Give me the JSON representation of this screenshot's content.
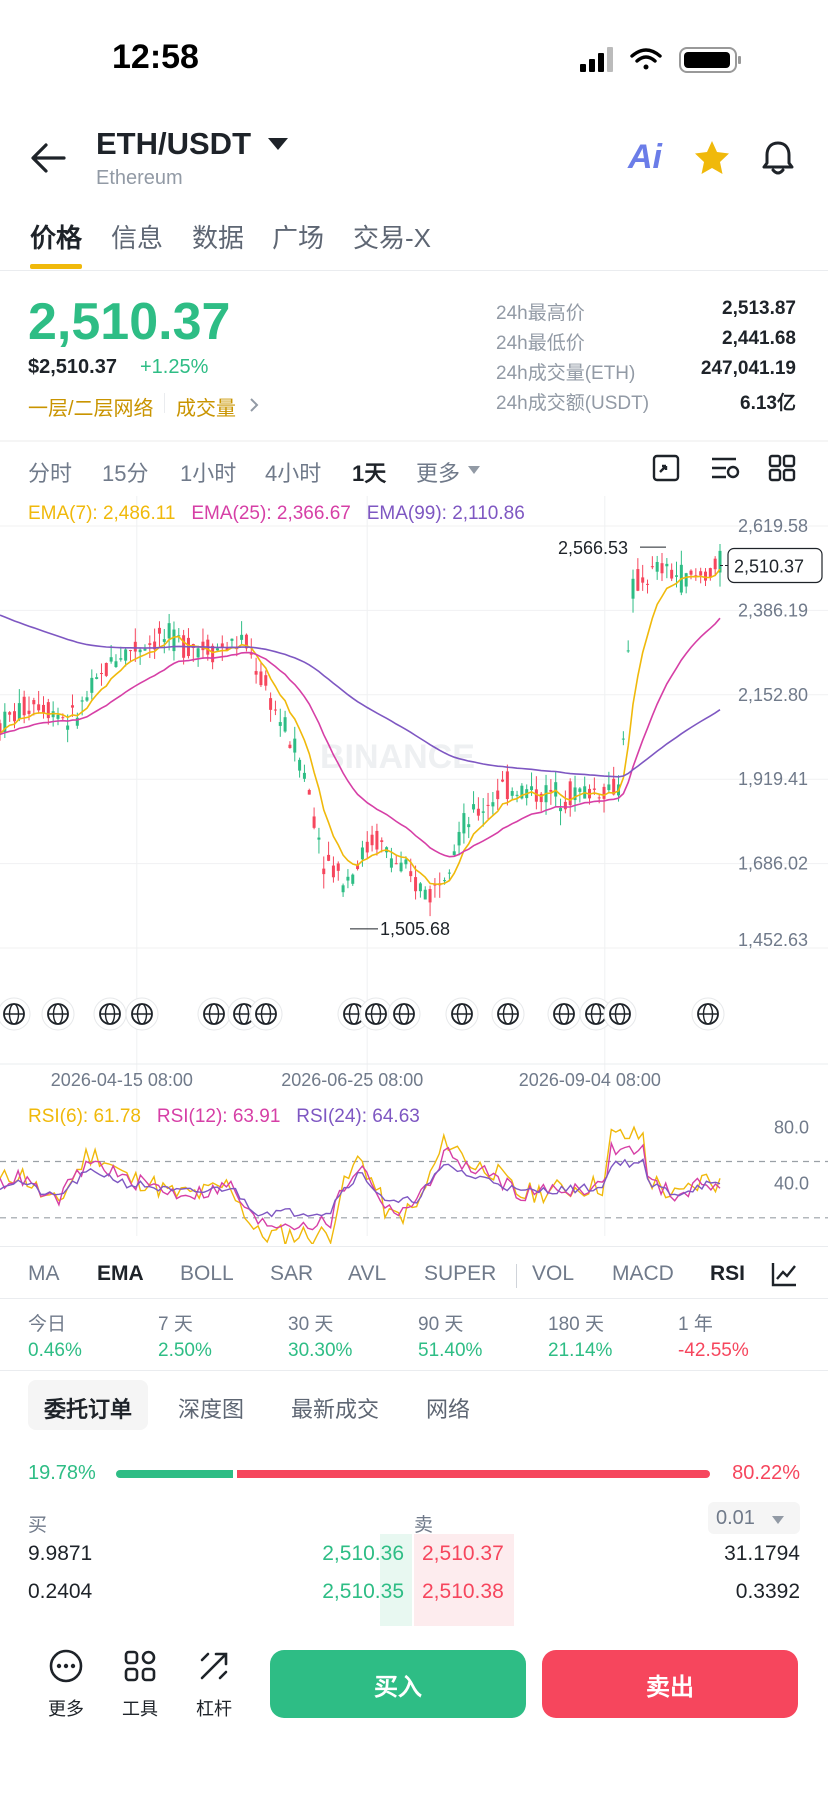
{
  "status_bar": {
    "time": "12:58"
  },
  "header": {
    "pair": "ETH/USDT",
    "subtitle": "Ethereum",
    "ai_label": "Ai"
  },
  "main_tabs": [
    "价格",
    "信息",
    "数据",
    "广场",
    "交易-X"
  ],
  "price": {
    "last": "2,510.37",
    "usd": "$2,510.37",
    "change": "+1.25%",
    "tag_network": "一层/二层网络",
    "tag_volume": "成交量"
  },
  "stats": [
    {
      "label": "24h最高价",
      "value": "2,513.87"
    },
    {
      "label": "24h最低价",
      "value": "2,441.68"
    },
    {
      "label": "24h成交量(ETH)",
      "value": "247,041.19"
    },
    {
      "label": "24h成交额(USDT)",
      "value": "6.13亿"
    }
  ],
  "interval_tabs": [
    "分时",
    "15分",
    "1小时",
    "4小时",
    "1天",
    "更多"
  ],
  "ema_legend": {
    "ema7": "EMA(7): 2,486.11",
    "ema25": "EMA(25): 2,366.67",
    "ema99": "EMA(99): 2,110.86"
  },
  "colors": {
    "up": "#2ebd85",
    "down": "#f6465d",
    "ema7": "#f0b90b",
    "ema25": "#d63fa6",
    "ema99": "#7e57c2",
    "brand": "#f0b90b"
  },
  "chart_data": [
    {
      "type": "candlestick",
      "title": "",
      "ylim": [
        1452.63,
        2619.58
      ],
      "y_ticks": [
        "2,619.58",
        "2,386.19",
        "2,152.80",
        "1,919.41",
        "1,686.02",
        "1,452.63"
      ],
      "x_ticks": [
        "2026-04-15 08:00",
        "2026-06-25 08:00",
        "2026-09-04 08:00"
      ],
      "high_label": "2,566.53",
      "low_label": "1,505.68",
      "last_label": "2,510.37",
      "watermark": "BINANCE",
      "high": 2566.53,
      "low": 1505.68,
      "last": 2510.37,
      "series": [
        {
          "name": "EMA(7)",
          "value": 2486.11
        },
        {
          "name": "EMA(25)",
          "value": 2366.67
        },
        {
          "name": "EMA(99)",
          "value": 2110.86
        }
      ],
      "trend_points": [
        [
          0,
          2070
        ],
        [
          0.05,
          2140
        ],
        [
          0.1,
          2080
        ],
        [
          0.16,
          2260
        ],
        [
          0.22,
          2310
        ],
        [
          0.3,
          2280
        ],
        [
          0.34,
          2300
        ],
        [
          0.38,
          2120
        ],
        [
          0.42,
          1960
        ],
        [
          0.45,
          1700
        ],
        [
          0.48,
          1640
        ],
        [
          0.52,
          1760
        ],
        [
          0.57,
          1640
        ],
        [
          0.6,
          1600
        ],
        [
          0.64,
          1780
        ],
        [
          0.7,
          1900
        ],
        [
          0.75,
          1880
        ],
        [
          0.8,
          1880
        ],
        [
          0.86,
          1900
        ],
        [
          0.88,
          2460
        ],
        [
          0.92,
          2500
        ],
        [
          0.96,
          2470
        ],
        [
          1.0,
          2510
        ]
      ]
    },
    {
      "type": "line",
      "title": "",
      "ylim": [
        0,
        100
      ],
      "y_ticks": [
        "80.0",
        "40.0"
      ],
      "legend": {
        "rsi6": "RSI(6): 61.78",
        "rsi12": "RSI(12): 63.91",
        "rsi24": "RSI(24): 64.63"
      },
      "series": [
        {
          "name": "RSI(6)",
          "value": 61.78
        },
        {
          "name": "RSI(12)",
          "value": 63.91
        },
        {
          "name": "RSI(24)",
          "value": 64.63
        }
      ]
    }
  ],
  "indicator_tabs": [
    "MA",
    "EMA",
    "BOLL",
    "SAR",
    "AVL",
    "SUPER",
    "VOL",
    "MACD",
    "RSI"
  ],
  "period_returns": [
    {
      "label": "今日",
      "value": "0.46%"
    },
    {
      "label": "7 天",
      "value": "2.50%"
    },
    {
      "label": "30 天",
      "value": "30.30%"
    },
    {
      "label": "90 天",
      "value": "51.40%"
    },
    {
      "label": "180 天",
      "value": "21.14%"
    },
    {
      "label": "1 年",
      "value": "-42.55%"
    }
  ],
  "orderbook": {
    "tabs": [
      "委托订单",
      "深度图",
      "最新成交",
      "网络"
    ],
    "buy_ratio": "19.78%",
    "sell_ratio": "80.22%",
    "buy_ratio_value": 0.1978,
    "buy_label": "买",
    "sell_label": "卖",
    "precision": "0.01",
    "rows": [
      {
        "bid_qty": "9.9871",
        "bid": "2,510.36",
        "ask": "2,510.37",
        "ask_qty": "31.1794"
      },
      {
        "bid_qty": "0.2404",
        "bid": "2,510.35",
        "ask": "2,510.38",
        "ask_qty": "0.3392"
      }
    ]
  },
  "bottom_bar": {
    "more": "更多",
    "tools": "工具",
    "leverage": "杠杆",
    "buy": "买入",
    "sell": "卖出"
  }
}
